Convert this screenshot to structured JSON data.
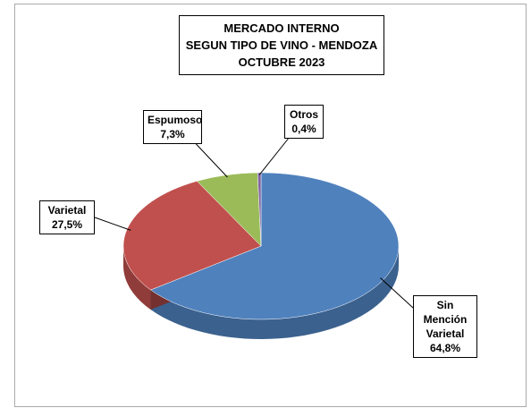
{
  "chart_data": {
    "type": "pie",
    "title": [
      "MERCADO INTERNO",
      "SEGUN TIPO DE VINO - MENDOZA",
      "OCTUBRE 2023"
    ],
    "categories": [
      "Sin Mención Varietal",
      "Varietal",
      "Espumoso",
      "Otros"
    ],
    "values": [
      64.8,
      27.5,
      7.3,
      0.4
    ],
    "value_labels": [
      "64,8%",
      "27,5%",
      "7,3%",
      "0,4%"
    ],
    "colors": [
      "#4f81bd",
      "#c0504d",
      "#9bbb59",
      "#8064a2"
    ]
  }
}
